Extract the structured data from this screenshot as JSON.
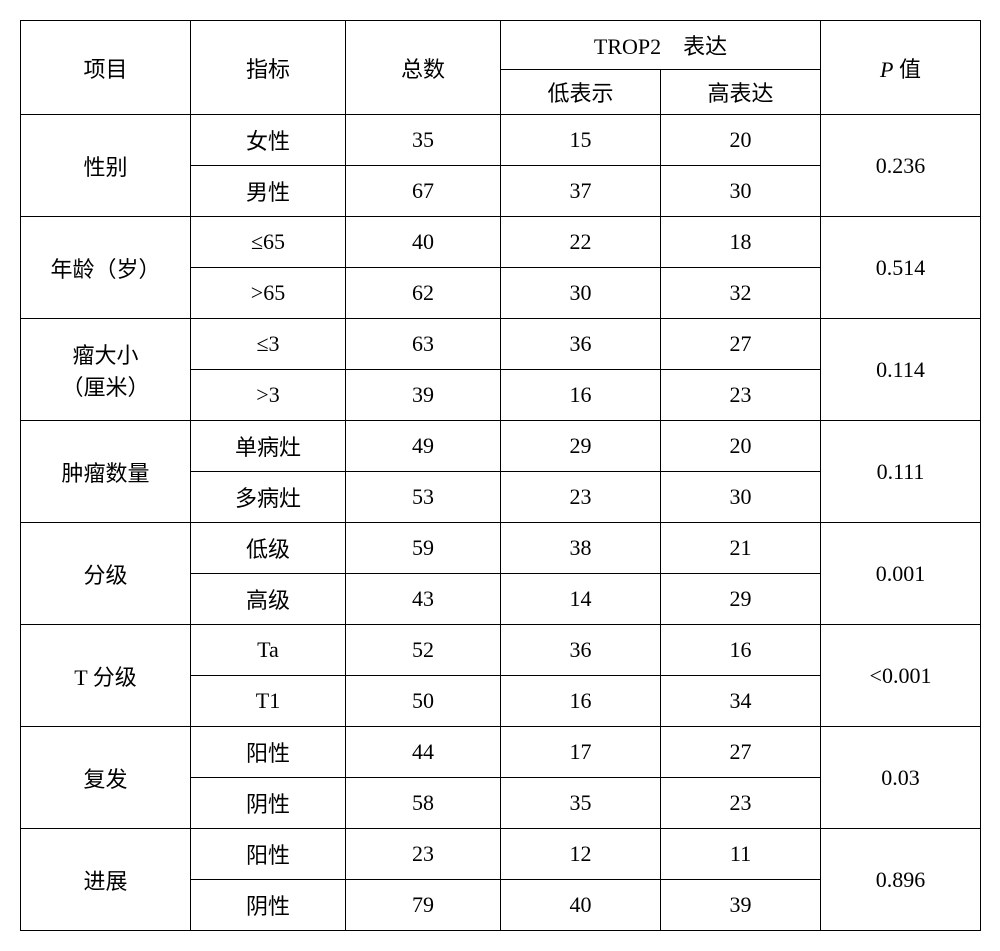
{
  "headers": {
    "project": "项目",
    "indicator": "指标",
    "total": "总数",
    "trop2_group": "TROP2 表达",
    "low_expr": "低表示",
    "high_expr": "高表达",
    "p_value_prefix": "P",
    "p_value_suffix": " 值"
  },
  "groups": [
    {
      "name": "性别",
      "p": "0.236",
      "rows": [
        {
          "indicator": "女性",
          "total": "35",
          "low": "15",
          "high": "20"
        },
        {
          "indicator": "男性",
          "total": "67",
          "low": "37",
          "high": "30"
        }
      ]
    },
    {
      "name": "年龄（岁）",
      "p": "0.514",
      "rows": [
        {
          "indicator": "≤65",
          "total": "40",
          "low": "22",
          "high": "18"
        },
        {
          "indicator": ">65",
          "total": "62",
          "low": "30",
          "high": "32"
        }
      ]
    },
    {
      "name": "瘤大小\n（厘米）",
      "p": "0.114",
      "rows": [
        {
          "indicator": "≤3",
          "total": "63",
          "low": "36",
          "high": "27"
        },
        {
          "indicator": ">3",
          "total": "39",
          "low": "16",
          "high": "23"
        }
      ]
    },
    {
      "name": "肿瘤数量",
      "p": "0.111",
      "rows": [
        {
          "indicator": "单病灶",
          "total": "49",
          "low": "29",
          "high": "20"
        },
        {
          "indicator": "多病灶",
          "total": "53",
          "low": "23",
          "high": "30"
        }
      ]
    },
    {
      "name": "分级",
      "p": "0.001",
      "rows": [
        {
          "indicator": "低级",
          "total": "59",
          "low": "38",
          "high": "21"
        },
        {
          "indicator": "高级",
          "total": "43",
          "low": "14",
          "high": "29"
        }
      ]
    },
    {
      "name": "T 分级",
      "p": "<0.001",
      "rows": [
        {
          "indicator": "Ta",
          "total": "52",
          "low": "36",
          "high": "16"
        },
        {
          "indicator": "T1",
          "total": "50",
          "low": "16",
          "high": "34"
        }
      ]
    },
    {
      "name": "复发",
      "p": "0.03",
      "rows": [
        {
          "indicator": "阳性",
          "total": "44",
          "low": "17",
          "high": "27"
        },
        {
          "indicator": "阴性",
          "total": "58",
          "low": "35",
          "high": "23"
        }
      ]
    },
    {
      "name": "进展",
      "p": "0.896",
      "rows": [
        {
          "indicator": "阳性",
          "total": "23",
          "low": "12",
          "high": "11"
        },
        {
          "indicator": "阴性",
          "total": "79",
          "low": "40",
          "high": "39"
        }
      ]
    }
  ]
}
